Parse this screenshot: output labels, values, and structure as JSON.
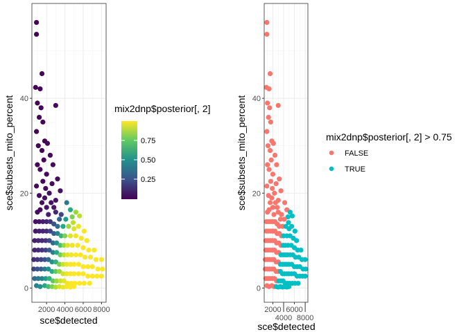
{
  "chart_data": [
    {
      "type": "scatter",
      "xlabel": "sce$detected",
      "ylabel": "sce$subsets_mito_percent",
      "xlim": [
        400,
        8500
      ],
      "ylim": [
        -3,
        60
      ],
      "xticks": [
        2000,
        4000,
        6000,
        8000
      ],
      "yticks": [
        0,
        20,
        40
      ],
      "grid": true,
      "legend_title": "mix2dnp$posterior[, 2]",
      "legend_placement": "right",
      "color_scale": "viridis",
      "colorbar_ticks": [
        "0.25",
        "0.50",
        "0.75"
      ]
    },
    {
      "type": "scatter",
      "xlabel": "sce$detected",
      "ylabel": "sce$subsets_mito_percent",
      "xlim": [
        400,
        8500
      ],
      "ylim": [
        -3,
        60
      ],
      "xticks": [
        2000,
        4000,
        6000,
        8000
      ],
      "yticks": [
        0,
        20,
        40
      ],
      "grid": true,
      "legend_title": "mix2dnp$posterior[, 2] > 0.75",
      "legend_placement": "right",
      "legend_entries": [
        {
          "label": "FALSE",
          "color": "#F8766D"
        },
        {
          "label": "TRUE",
          "color": "#00BFC4"
        }
      ]
    }
  ],
  "points_note_columns": [
    "detected",
    "subsets_mito_percent",
    "posterior"
  ],
  "points": [
    [
      900,
      56,
      0.01
    ],
    [
      900,
      53.5,
      0.01
    ],
    [
      1500,
      45.2,
      0.01
    ],
    [
      3000,
      38.5,
      0.02
    ],
    [
      800,
      42.3,
      0.01
    ],
    [
      1300,
      42,
      0.01
    ],
    [
      1000,
      39,
      0.01
    ],
    [
      1400,
      38,
      0.01
    ],
    [
      1200,
      36,
      0.01
    ],
    [
      1600,
      35,
      0.01
    ],
    [
      900,
      33,
      0.01
    ],
    [
      1800,
      31,
      0.01
    ],
    [
      2100,
      30.5,
      0.02
    ],
    [
      1100,
      30,
      0.01
    ],
    [
      1500,
      29,
      0.01
    ],
    [
      2400,
      28,
      0.02
    ],
    [
      1700,
      27,
      0.02
    ],
    [
      1000,
      26,
      0.01
    ],
    [
      2700,
      26,
      0.03
    ],
    [
      1300,
      25,
      0.02
    ],
    [
      2000,
      24,
      0.02
    ],
    [
      3200,
      23,
      0.03
    ],
    [
      1600,
      22.5,
      0.02
    ],
    [
      2600,
      22,
      0.03
    ],
    [
      900,
      21.5,
      0.02
    ],
    [
      1900,
      21,
      0.03
    ],
    [
      3500,
      20.5,
      0.05
    ],
    [
      2300,
      20,
      0.04
    ],
    [
      1200,
      19.5,
      0.03
    ],
    [
      4200,
      18,
      0.4
    ],
    [
      3000,
      18.5,
      0.05
    ],
    [
      2800,
      17,
      0.06
    ],
    [
      4600,
      16.5,
      0.6
    ],
    [
      5200,
      16,
      0.85
    ],
    [
      4800,
      15,
      0.8
    ],
    [
      3600,
      15.5,
      0.2
    ],
    [
      1500,
      18,
      0.04
    ],
    [
      2000,
      17,
      0.05
    ],
    [
      1000,
      16,
      0.03
    ],
    [
      5600,
      15.2,
      0.9
    ],
    [
      800,
      14,
      0.05
    ],
    [
      1200,
      14,
      0.06
    ],
    [
      1600,
      14,
      0.08
    ],
    [
      2000,
      14,
      0.1
    ],
    [
      2400,
      14,
      0.15
    ],
    [
      2800,
      13.5,
      0.25
    ],
    [
      3200,
      13,
      0.35
    ],
    [
      3800,
      13,
      0.6
    ],
    [
      4400,
      13,
      0.85
    ],
    [
      5000,
      12.5,
      0.95
    ],
    [
      800,
      12,
      0.06
    ],
    [
      1200,
      12,
      0.08
    ],
    [
      1600,
      12,
      0.1
    ],
    [
      2000,
      12,
      0.12
    ],
    [
      2400,
      12,
      0.2
    ],
    [
      2800,
      11.5,
      0.3
    ],
    [
      3200,
      11.5,
      0.45
    ],
    [
      3600,
      11,
      0.65
    ],
    [
      4000,
      11,
      0.8
    ],
    [
      4600,
      11,
      0.95
    ],
    [
      5200,
      11,
      0.98
    ],
    [
      5800,
      10.5,
      0.99
    ],
    [
      6400,
      10,
      0.99
    ],
    [
      700,
      10,
      0.08
    ],
    [
      1100,
      10,
      0.1
    ],
    [
      1500,
      10,
      0.12
    ],
    [
      1900,
      10,
      0.15
    ],
    [
      2300,
      10,
      0.22
    ],
    [
      2700,
      9.5,
      0.35
    ],
    [
      3100,
      9.5,
      0.5
    ],
    [
      3500,
      9,
      0.7
    ],
    [
      3900,
      9,
      0.85
    ],
    [
      4300,
      9,
      0.95
    ],
    [
      4800,
      9,
      0.98
    ],
    [
      5400,
      9,
      0.99
    ],
    [
      6000,
      8.5,
      0.99
    ],
    [
      6600,
      8,
      1
    ],
    [
      7200,
      8,
      1
    ],
    [
      700,
      8,
      0.1
    ],
    [
      1100,
      8,
      0.12
    ],
    [
      1500,
      8,
      0.15
    ],
    [
      1900,
      8,
      0.2
    ],
    [
      2300,
      8,
      0.3
    ],
    [
      2700,
      7.5,
      0.45
    ],
    [
      3100,
      7.5,
      0.6
    ],
    [
      3500,
      7,
      0.78
    ],
    [
      3900,
      7,
      0.9
    ],
    [
      4300,
      7,
      0.96
    ],
    [
      4700,
      7,
      0.98
    ],
    [
      5200,
      7,
      0.99
    ],
    [
      5700,
      7,
      1
    ],
    [
      6200,
      6.5,
      1
    ],
    [
      6800,
      6.5,
      1
    ],
    [
      7400,
      6,
      1
    ],
    [
      8000,
      6,
      1
    ],
    [
      600,
      6,
      0.12
    ],
    [
      1000,
      6,
      0.15
    ],
    [
      1400,
      6,
      0.2
    ],
    [
      1800,
      6,
      0.25
    ],
    [
      2200,
      6,
      0.35
    ],
    [
      2600,
      5.5,
      0.5
    ],
    [
      3000,
      5.5,
      0.65
    ],
    [
      3400,
      5,
      0.8
    ],
    [
      3800,
      5,
      0.92
    ],
    [
      4200,
      5,
      0.97
    ],
    [
      4600,
      5,
      0.99
    ],
    [
      5000,
      5,
      1
    ],
    [
      5500,
      5,
      1
    ],
    [
      6000,
      4.5,
      1
    ],
    [
      6500,
      4.5,
      1
    ],
    [
      7000,
      4.5,
      1
    ],
    [
      7600,
      4,
      1
    ],
    [
      8100,
      4,
      1
    ],
    [
      600,
      4,
      0.2
    ],
    [
      1000,
      4,
      0.25
    ],
    [
      1400,
      4,
      0.3
    ],
    [
      1800,
      4,
      0.4
    ],
    [
      2200,
      4,
      0.5
    ],
    [
      2600,
      3.5,
      0.62
    ],
    [
      3000,
      3.5,
      0.75
    ],
    [
      3400,
      3.5,
      0.85
    ],
    [
      3800,
      3,
      0.93
    ],
    [
      4200,
      3,
      0.97
    ],
    [
      4600,
      3,
      0.99
    ],
    [
      5000,
      3,
      1
    ],
    [
      5500,
      3,
      1
    ],
    [
      6000,
      3,
      1
    ],
    [
      6500,
      2.5,
      1
    ],
    [
      7000,
      2.5,
      1
    ],
    [
      7500,
      2.5,
      1
    ],
    [
      8000,
      2.5,
      1
    ],
    [
      700,
      2,
      0.35
    ],
    [
      1100,
      2,
      0.4
    ],
    [
      1500,
      2,
      0.45
    ],
    [
      1900,
      2,
      0.55
    ],
    [
      2300,
      2,
      0.65
    ],
    [
      2700,
      1.5,
      0.75
    ],
    [
      3100,
      1.5,
      0.85
    ],
    [
      3500,
      1.5,
      0.92
    ],
    [
      3900,
      1.5,
      0.96
    ],
    [
      4300,
      1,
      0.98
    ],
    [
      4700,
      1,
      1
    ],
    [
      5100,
      1,
      1
    ],
    [
      5600,
      1,
      1
    ],
    [
      6100,
      1,
      1
    ],
    [
      6700,
      1,
      1
    ],
    [
      900,
      0.5,
      0.45
    ],
    [
      1300,
      0.3,
      0.5
    ],
    [
      1800,
      0.5,
      0.6
    ],
    [
      2200,
      0.3,
      0.7
    ],
    [
      2600,
      0.3,
      0.8
    ],
    [
      3000,
      0.2,
      0.88
    ],
    [
      3400,
      0.3,
      0.94
    ],
    [
      3800,
      0.2,
      0.97
    ],
    [
      4200,
      0.3,
      0.99
    ],
    [
      4600,
      0.2,
      1
    ],
    [
      5000,
      0.3,
      1
    ],
    [
      1300,
      16.5,
      0.03
    ],
    [
      1800,
      19,
      0.04
    ],
    [
      2500,
      18,
      0.05
    ],
    [
      2200,
      15.5,
      0.08
    ],
    [
      3000,
      16,
      0.1
    ],
    [
      3400,
      14.5,
      0.3
    ],
    [
      4100,
      14.5,
      0.55
    ],
    [
      4900,
      13.8,
      0.9
    ],
    [
      5500,
      13,
      0.97
    ],
    [
      6100,
      12,
      0.99
    ]
  ]
}
